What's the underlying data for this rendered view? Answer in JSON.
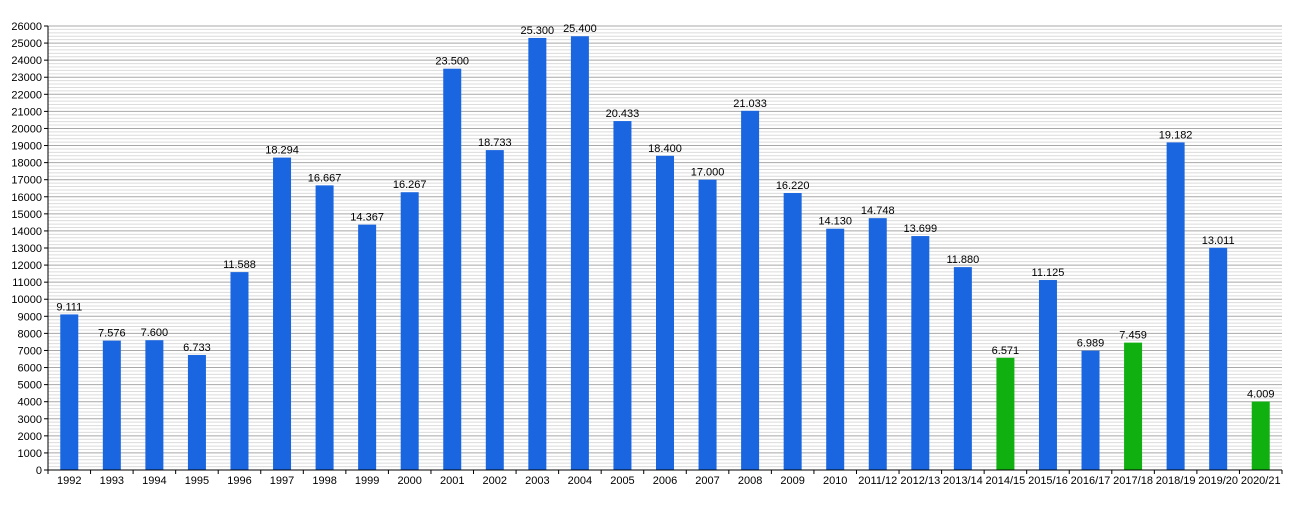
{
  "chart_data": {
    "type": "bar",
    "categories": [
      "1992",
      "1993",
      "1994",
      "1995",
      "1996",
      "1997",
      "1998",
      "1999",
      "2000",
      "2001",
      "2002",
      "2003",
      "2004",
      "2005",
      "2006",
      "2007",
      "2008",
      "2009",
      "2010",
      "2011/12",
      "2012/13",
      "2013/14",
      "2014/15",
      "2015/16",
      "2016/17",
      "2017/18",
      "2018/19",
      "2019/20",
      "2020/21"
    ],
    "values": [
      9111,
      7576,
      7600,
      6733,
      11588,
      18294,
      16667,
      14367,
      16267,
      23500,
      18733,
      25300,
      25400,
      20433,
      18400,
      17000,
      21033,
      16220,
      14130,
      14748,
      13699,
      11880,
      6571,
      11125,
      6989,
      7459,
      19182,
      13011,
      4009
    ],
    "data_labels": [
      "9.111",
      "7.576",
      "7.600",
      "6.733",
      "11.588",
      "18.294",
      "16.667",
      "14.367",
      "16.267",
      "23.500",
      "18.733",
      "25.300",
      "25.400",
      "20.433",
      "18.400",
      "17.000",
      "21.033",
      "16.220",
      "14.130",
      "14.748",
      "13.699",
      "11.880",
      "6.571",
      "11.125",
      "6.989",
      "7.459",
      "19.182",
      "13.011",
      "4.009"
    ],
    "bar_colors": [
      "#1a66e0",
      "#1a66e0",
      "#1a66e0",
      "#1a66e0",
      "#1a66e0",
      "#1a66e0",
      "#1a66e0",
      "#1a66e0",
      "#1a66e0",
      "#1a66e0",
      "#1a66e0",
      "#1a66e0",
      "#1a66e0",
      "#1a66e0",
      "#1a66e0",
      "#1a66e0",
      "#1a66e0",
      "#1a66e0",
      "#1a66e0",
      "#1a66e0",
      "#1a66e0",
      "#1a66e0",
      "#11b011",
      "#1a66e0",
      "#1a66e0",
      "#11b011",
      "#1a66e0",
      "#1a66e0",
      "#11b011"
    ],
    "colors": {
      "primary": "#1a66e0",
      "highlight": "#11b011"
    },
    "ylim": [
      0,
      26000
    ],
    "yticks": [
      0,
      1000,
      2000,
      3000,
      4000,
      5000,
      6000,
      7000,
      8000,
      9000,
      10000,
      11000,
      12000,
      13000,
      14000,
      15000,
      16000,
      17000,
      18000,
      19000,
      20000,
      21000,
      22000,
      23000,
      24000,
      25000,
      26000
    ],
    "minor_grid_step": 200,
    "grid": true,
    "title": "",
    "xlabel": "",
    "ylabel": ""
  }
}
